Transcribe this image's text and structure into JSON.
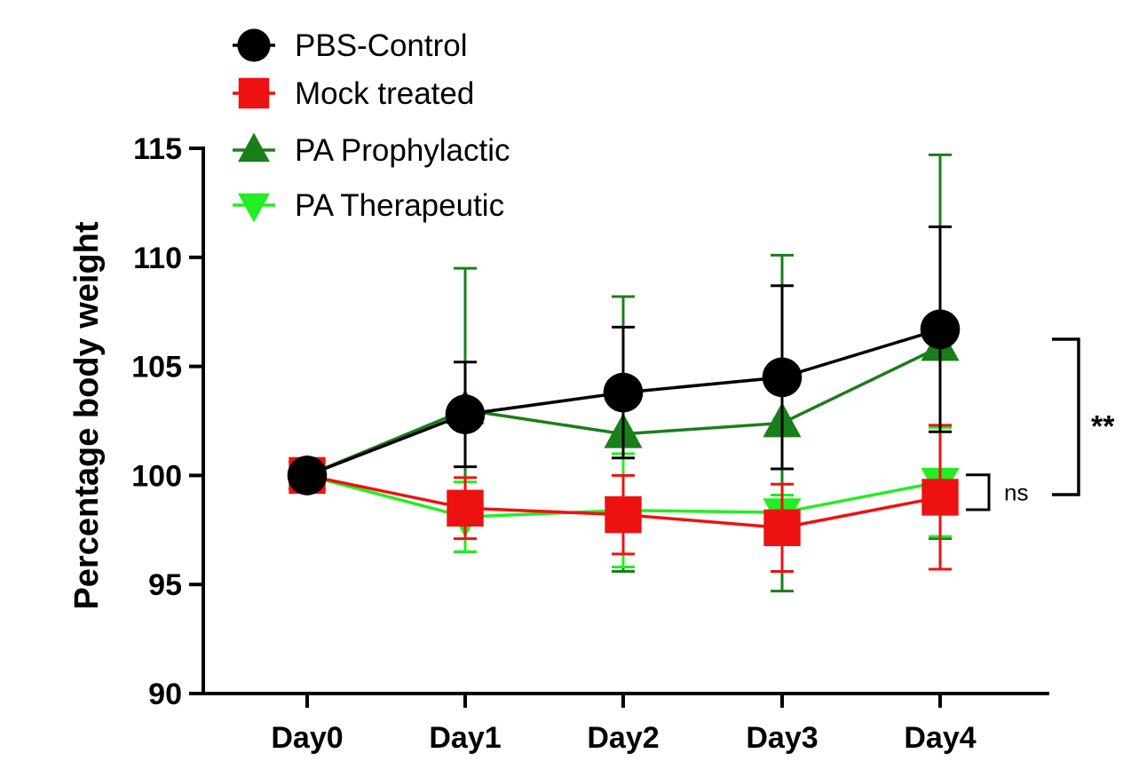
{
  "chart_data": {
    "type": "line",
    "title": "",
    "xlabel": "",
    "ylabel": "Percentage body weight",
    "ylim": [
      90,
      115
    ],
    "yticks": [
      90,
      95,
      100,
      105,
      110,
      115
    ],
    "categories": [
      "Day0",
      "Day1",
      "Day2",
      "Day3",
      "Day4"
    ],
    "grid": false,
    "legend_position": "top-left",
    "series": [
      {
        "name": "PBS-Control",
        "color": "#000000",
        "marker": "circle",
        "values": [
          100,
          102.8,
          103.8,
          104.5,
          106.7
        ],
        "errors": [
          0,
          2.4,
          3.0,
          4.2,
          4.7
        ]
      },
      {
        "name": "Mock treated",
        "color": "#ee1111",
        "marker": "square",
        "values": [
          100,
          98.5,
          98.2,
          97.6,
          99.0
        ],
        "errors": [
          0,
          1.4,
          1.8,
          2.0,
          3.3
        ]
      },
      {
        "name": "PA Prophylactic",
        "color": "#1a7f1a",
        "marker": "triangle-up",
        "values": [
          100,
          103.0,
          101.9,
          102.4,
          105.9
        ],
        "errors": [
          0,
          6.5,
          6.3,
          7.7,
          8.8
        ]
      },
      {
        "name": "PA Therapeutic",
        "color": "#22ee22",
        "marker": "triangle-down",
        "values": [
          100,
          98.1,
          98.4,
          98.3,
          99.7
        ],
        "errors": [
          0,
          1.6,
          2.6,
          0.8,
          2.5
        ]
      }
    ],
    "annotations": [
      {
        "label": "ns",
        "between": [
          "PA Therapeutic",
          "Mock treated"
        ]
      },
      {
        "label": "**",
        "between": [
          "PA Prophylactic",
          "PA Therapeutic"
        ]
      }
    ]
  }
}
